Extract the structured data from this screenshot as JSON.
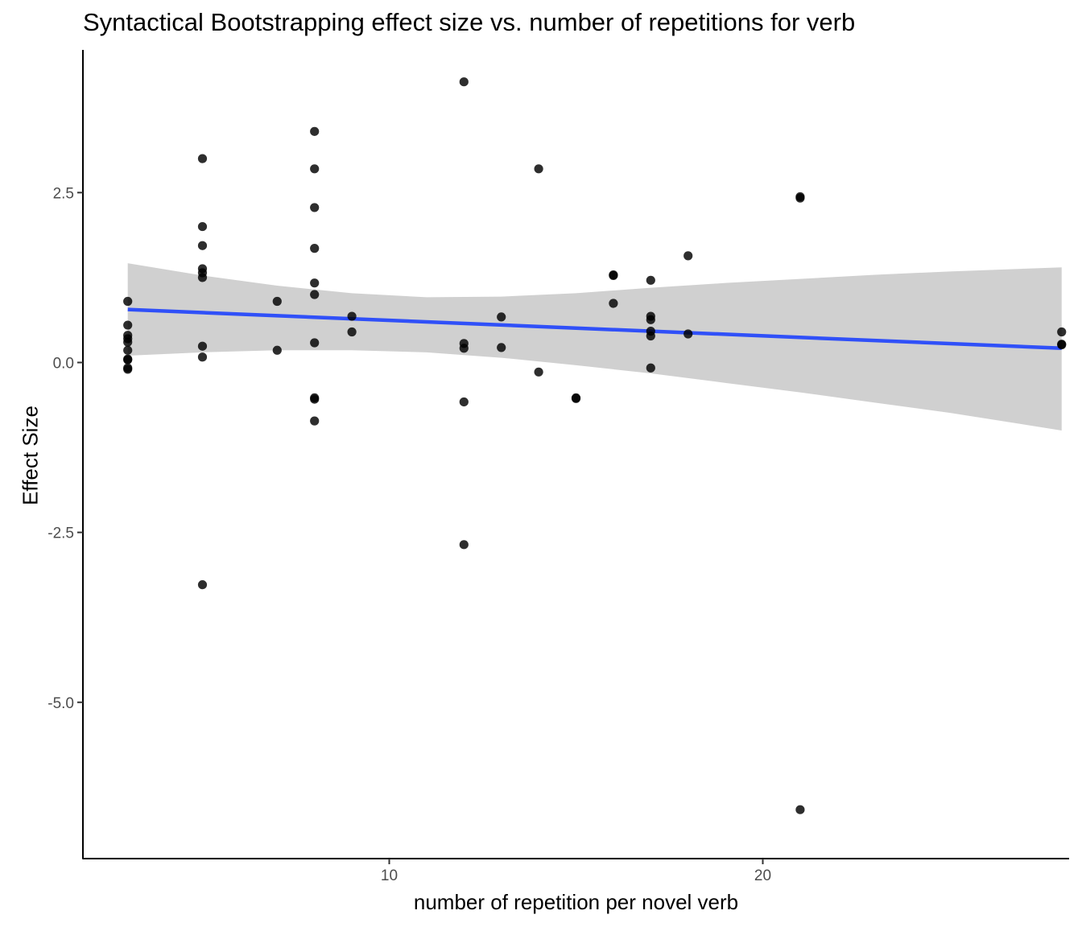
{
  "chart_data": {
    "type": "scatter",
    "title": "Syntactical Bootstrapping effect size vs. number of repetitions for verb",
    "xlabel": "number of repetition per novel verb",
    "ylabel": "Effect Size",
    "xlim": [
      1.8,
      28.2
    ],
    "ylim": [
      -7.3,
      4.6
    ],
    "x_ticks": [
      10,
      20
    ],
    "x_tick_labels": [
      "10",
      "20"
    ],
    "y_ticks": [
      2.5,
      0.0,
      -2.5,
      -5.0
    ],
    "y_tick_labels": [
      "2.5",
      "0.0",
      "-2.5",
      "-5.0"
    ],
    "grid": false,
    "point_color": "#000000",
    "line_color": "#3050F8",
    "band_color": "#d0d0d0",
    "points": [
      {
        "x": 3,
        "y": 0.9
      },
      {
        "x": 3,
        "y": 0.55
      },
      {
        "x": 3,
        "y": 0.4
      },
      {
        "x": 3,
        "y": 0.35
      },
      {
        "x": 3,
        "y": 0.3
      },
      {
        "x": 3,
        "y": 0.18
      },
      {
        "x": 3,
        "y": 0.05
      },
      {
        "x": 3,
        "y": 0.04
      },
      {
        "x": 3,
        "y": -0.08
      },
      {
        "x": 3,
        "y": -0.1
      },
      {
        "x": 5,
        "y": 3.0
      },
      {
        "x": 5,
        "y": 2.0
      },
      {
        "x": 5,
        "y": 1.72
      },
      {
        "x": 5,
        "y": 1.38
      },
      {
        "x": 5,
        "y": 1.32
      },
      {
        "x": 5,
        "y": 1.25
      },
      {
        "x": 5,
        "y": 0.24
      },
      {
        "x": 5,
        "y": 0.08
      },
      {
        "x": 5,
        "y": -3.27
      },
      {
        "x": 7,
        "y": 0.9
      },
      {
        "x": 7,
        "y": 0.18
      },
      {
        "x": 8,
        "y": 3.4
      },
      {
        "x": 8,
        "y": 2.85
      },
      {
        "x": 8,
        "y": 2.28
      },
      {
        "x": 8,
        "y": 1.68
      },
      {
        "x": 8,
        "y": 1.17
      },
      {
        "x": 8,
        "y": 1.0
      },
      {
        "x": 8,
        "y": 0.29
      },
      {
        "x": 8,
        "y": -0.52
      },
      {
        "x": 8,
        "y": -0.54
      },
      {
        "x": 8,
        "y": -0.86
      },
      {
        "x": 9,
        "y": 0.68
      },
      {
        "x": 9,
        "y": 0.45
      },
      {
        "x": 12,
        "y": 4.13
      },
      {
        "x": 12,
        "y": 0.28
      },
      {
        "x": 12,
        "y": 0.21
      },
      {
        "x": 12,
        "y": -0.58
      },
      {
        "x": 12,
        "y": -2.68
      },
      {
        "x": 13,
        "y": 0.67
      },
      {
        "x": 13,
        "y": 0.22
      },
      {
        "x": 14,
        "y": 2.85
      },
      {
        "x": 14,
        "y": -0.14
      },
      {
        "x": 15,
        "y": -0.52
      },
      {
        "x": 15,
        "y": -0.53
      },
      {
        "x": 16,
        "y": 1.29
      },
      {
        "x": 16,
        "y": 1.28
      },
      {
        "x": 16,
        "y": 0.87
      },
      {
        "x": 17,
        "y": 1.21
      },
      {
        "x": 17,
        "y": 0.68
      },
      {
        "x": 17,
        "y": 0.63
      },
      {
        "x": 17,
        "y": 0.46
      },
      {
        "x": 17,
        "y": 0.39
      },
      {
        "x": 17,
        "y": -0.08
      },
      {
        "x": 18,
        "y": 1.57
      },
      {
        "x": 18,
        "y": 0.42
      },
      {
        "x": 21,
        "y": 2.44
      },
      {
        "x": 21,
        "y": 2.42
      },
      {
        "x": 21,
        "y": -6.58
      },
      {
        "x": 28,
        "y": 0.45
      },
      {
        "x": 28,
        "y": 0.27
      },
      {
        "x": 28,
        "y": 0.26
      }
    ],
    "trend_line": {
      "x": [
        3,
        28
      ],
      "y": [
        0.78,
        0.21
      ]
    },
    "confidence_band": {
      "x": [
        3,
        5,
        7,
        9,
        11,
        13,
        15,
        17,
        19,
        21,
        23,
        25,
        28
      ],
      "upper": [
        1.46,
        1.28,
        1.13,
        1.02,
        0.96,
        0.97,
        1.02,
        1.1,
        1.17,
        1.23,
        1.29,
        1.34,
        1.4
      ],
      "lower": [
        0.1,
        0.15,
        0.18,
        0.18,
        0.15,
        0.07,
        -0.04,
        -0.16,
        -0.3,
        -0.44,
        -0.59,
        -0.74,
        -1.0
      ]
    }
  }
}
